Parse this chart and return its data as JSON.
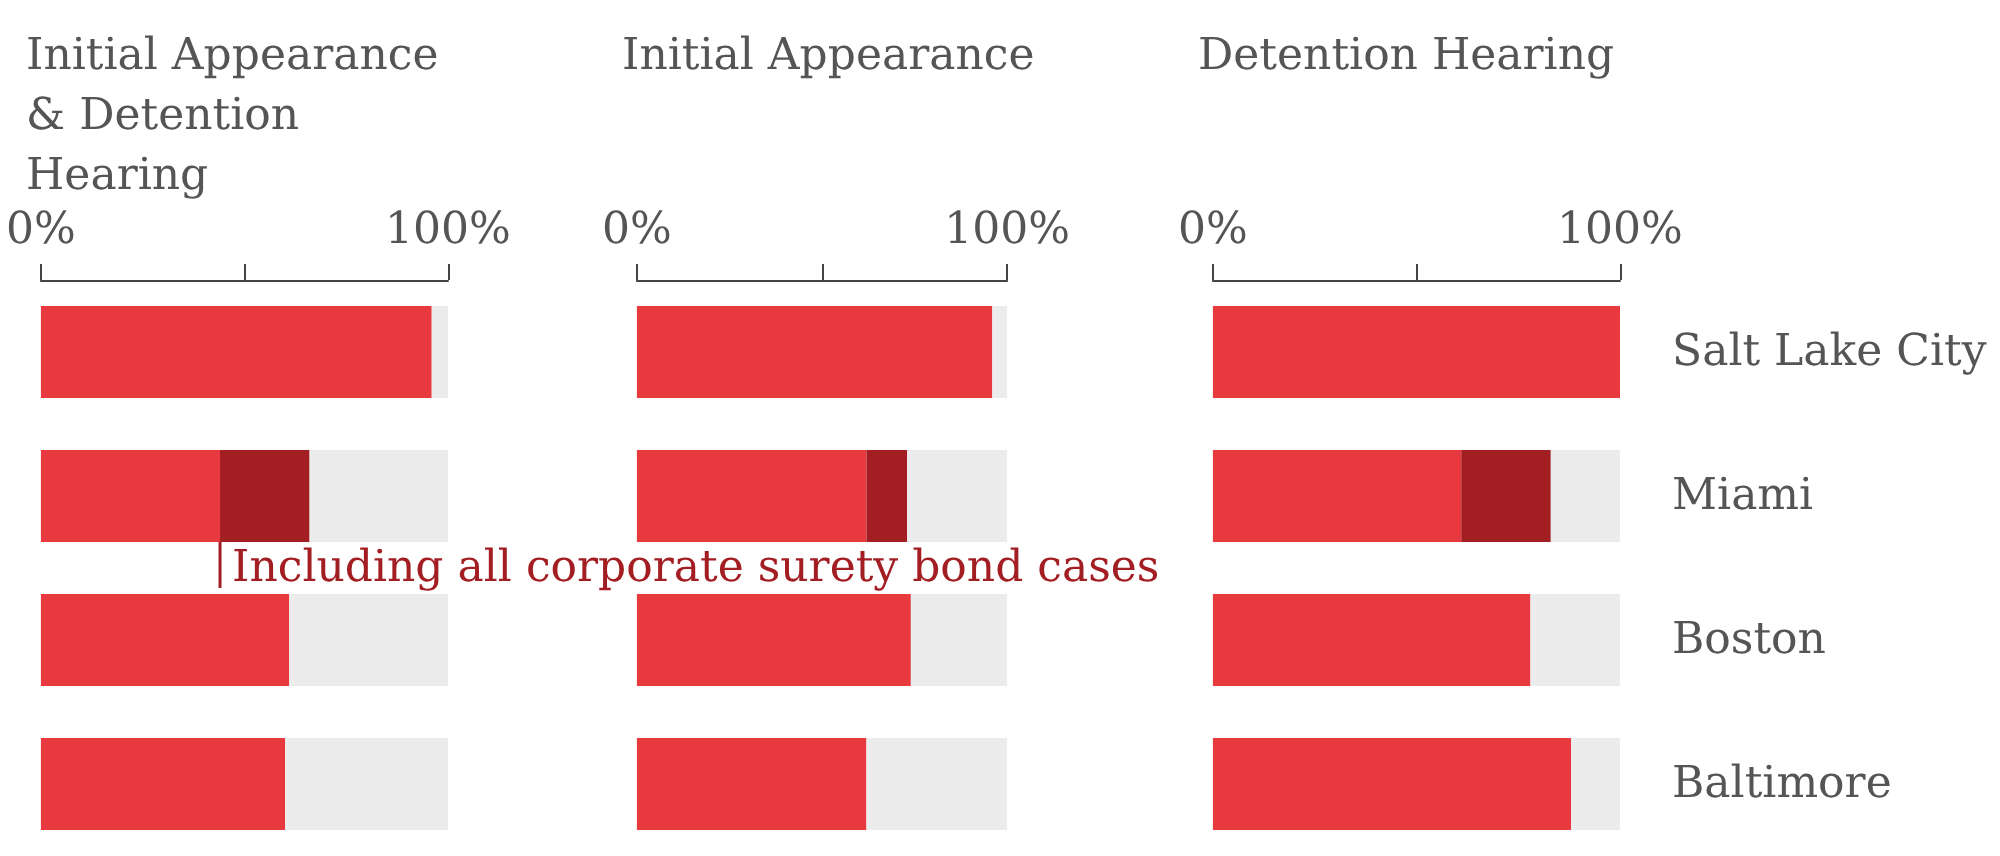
{
  "chart_data": [
    {
      "type": "bar",
      "orientation": "horizontal",
      "stacked": true,
      "title": "Initial Appearance & Detention Hearing",
      "categories": [
        "Salt Lake City",
        "Miami",
        "Boston",
        "Baltimore"
      ],
      "series": [
        {
          "color": "#e8393f",
          "values": [
            96,
            44,
            61,
            60
          ]
        },
        {
          "color": "#a31e22",
          "values": [
            null,
            22,
            null,
            null
          ]
        },
        {
          "color": "#ececec",
          "values": [
            4,
            34,
            39,
            40
          ]
        }
      ],
      "xlim": [
        0,
        100
      ],
      "xticks": [
        {
          "value": 0,
          "label": "0%"
        },
        {
          "value": 50,
          "label": null
        },
        {
          "value": 100,
          "label": "100%"
        }
      ],
      "tick_labels": "x",
      "annotations": [
        {
          "text": "Including all corporate surety bond cases",
          "x": 44,
          "y": "Miami"
        }
      ]
    },
    {
      "type": "bar",
      "orientation": "horizontal",
      "stacked": true,
      "title": "Initial Appearance",
      "categories": [
        "Salt Lake City",
        "Miami",
        "Boston",
        "Baltimore"
      ],
      "series": [
        {
          "color": "#e8393f",
          "values": [
            96,
            62,
            74,
            62
          ]
        },
        {
          "color": "#a31e22",
          "values": [
            null,
            11,
            null,
            null
          ]
        },
        {
          "color": "#ececec",
          "values": [
            4,
            27,
            26,
            38
          ]
        }
      ],
      "xlim": [
        0,
        100
      ],
      "xticks": [
        {
          "value": 0,
          "label": "0%"
        },
        {
          "value": 50,
          "label": null
        },
        {
          "value": 100,
          "label": "100%"
        }
      ],
      "tick_labels": "x"
    },
    {
      "type": "bar",
      "orientation": "horizontal",
      "stacked": true,
      "title": "Detention Hearing",
      "categories": [
        "Salt Lake City",
        "Miami",
        "Boston",
        "Baltimore"
      ],
      "series": [
        {
          "color": "#e8393f",
          "values": [
            100,
            61,
            78,
            88
          ]
        },
        {
          "color": "#a31e22",
          "values": [
            null,
            22,
            null,
            null
          ]
        },
        {
          "color": "#ececec",
          "values": [
            null,
            17,
            22,
            12
          ]
        }
      ],
      "xlim": [
        0,
        100
      ],
      "xticks": [
        {
          "value": 0,
          "label": "0%"
        },
        {
          "value": 50,
          "label": null
        },
        {
          "value": 100,
          "label": "100%"
        }
      ]
    }
  ]
}
